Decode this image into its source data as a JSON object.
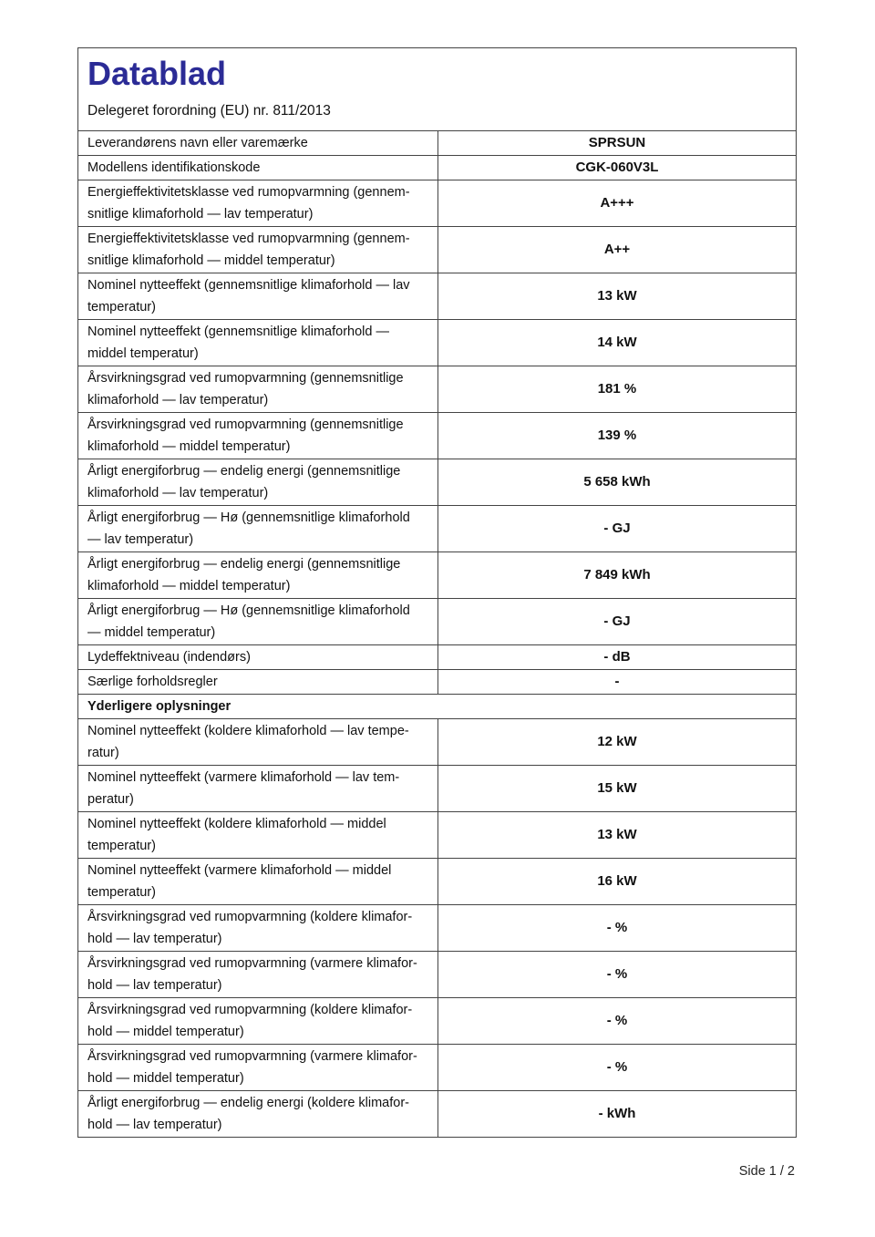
{
  "page": {
    "title": "Datablad",
    "subtitle": "Delegeret forordning (EU) nr. 811/2013",
    "footer": "Side 1 / 2",
    "title_color": "#2b2b96"
  },
  "table": {
    "rows": [
      {
        "type": "data",
        "label": "Leverandørens navn eller varemærke",
        "value": "SPRSUN"
      },
      {
        "type": "data",
        "label": "Modellens identifikationskode",
        "value": "CGK-060V3L"
      },
      {
        "type": "data",
        "label": "Energieffektivitetsklasse ved rumopvarmning (gennem-\nsnitlige klimaforhold — lav temperatur)",
        "value": "A+++"
      },
      {
        "type": "data",
        "label": "Energieffektivitetsklasse ved rumopvarmning (gennem-\nsnitlige klimaforhold — middel temperatur)",
        "value": "A++"
      },
      {
        "type": "data",
        "label": "Nominel nytteeffekt (gennemsnitlige klimaforhold — lav\ntemperatur)",
        "value": "13 kW"
      },
      {
        "type": "data",
        "label": "Nominel nytteeffekt (gennemsnitlige klimaforhold —\nmiddel temperatur)",
        "value": "14 kW"
      },
      {
        "type": "data",
        "label": "Årsvirkningsgrad ved rumopvarmning (gennemsnitlige\nklimaforhold — lav temperatur)",
        "value": "181 %"
      },
      {
        "type": "data",
        "label": "Årsvirkningsgrad ved rumopvarmning (gennemsnitlige\nklimaforhold — middel temperatur)",
        "value": "139 %"
      },
      {
        "type": "data",
        "label": "Årligt energiforbrug — endelig energi (gennemsnitlige\nklimaforhold — lav temperatur)",
        "value": "5 658 kWh"
      },
      {
        "type": "data",
        "label": "Årligt energiforbrug — Hø (gennemsnitlige klimaforhold\n— lav temperatur)",
        "value": "- GJ"
      },
      {
        "type": "data",
        "label": "Årligt energiforbrug — endelig energi (gennemsnitlige\nklimaforhold — middel temperatur)",
        "value": "7 849 kWh"
      },
      {
        "type": "data",
        "label": "Årligt energiforbrug — Hø (gennemsnitlige klimaforhold\n— middel temperatur)",
        "value": "- GJ"
      },
      {
        "type": "data",
        "label": "Lydeffektniveau (indendørs)",
        "value": "- dB"
      },
      {
        "type": "data",
        "label": "Særlige forholdsregler",
        "value": "-"
      },
      {
        "type": "section",
        "label": "Yderligere oplysninger"
      },
      {
        "type": "data",
        "label": "Nominel nytteeffekt (koldere klimaforhold — lav tempe-\nratur)",
        "value": "12 kW"
      },
      {
        "type": "data",
        "label": "Nominel nytteeffekt (varmere klimaforhold — lav tem-\nperatur)",
        "value": "15 kW"
      },
      {
        "type": "data",
        "label": "Nominel nytteeffekt (koldere klimaforhold — middel\ntemperatur)",
        "value": "13 kW"
      },
      {
        "type": "data",
        "label": "Nominel nytteeffekt (varmere klimaforhold — middel\ntemperatur)",
        "value": "16 kW"
      },
      {
        "type": "data",
        "label": "Årsvirkningsgrad ved rumopvarmning (koldere klimafor-\nhold — lav temperatur)",
        "value": "- %"
      },
      {
        "type": "data",
        "label": "Årsvirkningsgrad ved rumopvarmning (varmere klimafor-\nhold — lav temperatur)",
        "value": "- %"
      },
      {
        "type": "data",
        "label": "Årsvirkningsgrad ved rumopvarmning (koldere klimafor-\nhold — middel temperatur)",
        "value": "- %"
      },
      {
        "type": "data",
        "label": "Årsvirkningsgrad ved rumopvarmning (varmere klimafor-\nhold — middel temperatur)",
        "value": "- %"
      },
      {
        "type": "data",
        "label": "Årligt energiforbrug — endelig energi (koldere klimafor-\nhold — lav temperatur)",
        "value": "- kWh"
      }
    ]
  }
}
